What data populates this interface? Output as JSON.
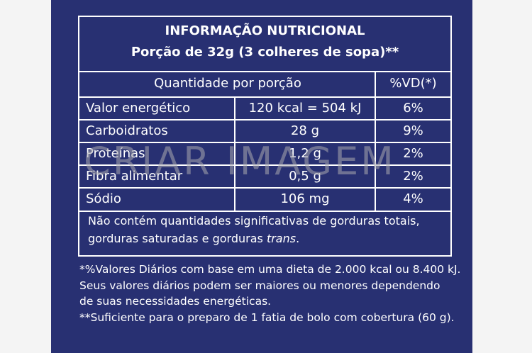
{
  "panel": {
    "title": "INFORMAÇÃO NUTRICIONAL",
    "subtitle": "Porção de 32g (3 colheres de sopa)**"
  },
  "table": {
    "header": [
      "Quantidade por porção",
      "%VD(*)"
    ],
    "rows": [
      [
        "Valor energético",
        "120 kcal = 504 kJ",
        "6%"
      ],
      [
        "Carboidratos",
        "28 g",
        "9%"
      ],
      [
        "Proteínas",
        "1,2 g",
        "2%"
      ],
      [
        "Fibra alimentar",
        "0,5 g",
        "2%"
      ],
      [
        "Sódio",
        "106 mg",
        "4%"
      ]
    ],
    "note": {
      "line1": "Não contém quantidades significativas de gorduras totais,",
      "line2": "gorduras saturadas e gorduras",
      "emphasis": "trans",
      "end": "."
    }
  },
  "notes": [
    "*%Valores Diários com base em uma dieta de 2.000 kcal ou 8.400 kJ.",
    "Seus valores diários podem ser maiores ou menores dependendo",
    "de suas necessidades energéticas.",
    "**Suficiente para o preparo de 1 fatia de bolo com cobertura (60 g)."
  ],
  "watermark": "CRIAR IMAGEM"
}
